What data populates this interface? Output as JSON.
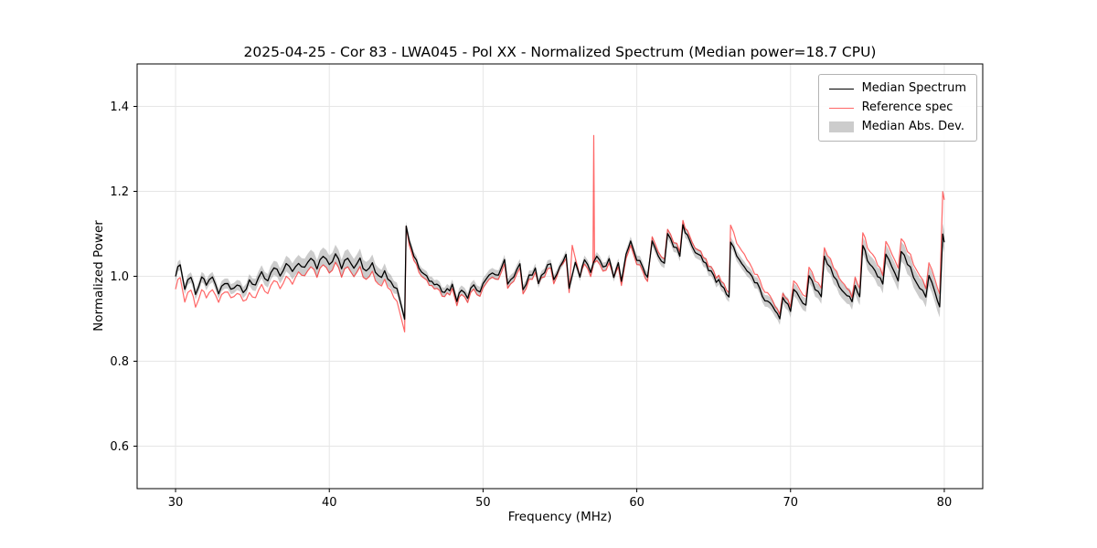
{
  "chart_data": {
    "type": "line",
    "title": "2025-04-25 - Cor 83 - LWA045 - Pol XX - Normalized Spectrum (Median power=18.7 CPU)",
    "xlabel": "Frequency (MHz)",
    "ylabel": "Normalized Power",
    "xlim": [
      27.5,
      82.5
    ],
    "ylim": [
      0.5,
      1.5
    ],
    "grid": true,
    "grid_color": "#e6e6e6",
    "legend_position": "upper right",
    "noise_amp": 0.008,
    "x_ticks": [
      {
        "v": 30,
        "label": "30"
      },
      {
        "v": 40,
        "label": "40"
      },
      {
        "v": 50,
        "label": "50"
      },
      {
        "v": 60,
        "label": "60"
      },
      {
        "v": 70,
        "label": "70"
      },
      {
        "v": 80,
        "label": "80"
      }
    ],
    "y_ticks": [
      {
        "v": 0.6,
        "label": "0.6"
      },
      {
        "v": 0.8,
        "label": "0.8"
      },
      {
        "v": 1.0,
        "label": "1.0"
      },
      {
        "v": 1.2,
        "label": "1.2"
      },
      {
        "v": 1.4,
        "label": "1.4"
      }
    ],
    "series": [
      {
        "name": "Median Spectrum",
        "color": "#000000",
        "width": 1.3,
        "points": [
          [
            30,
            1.0
          ],
          [
            30.3,
            1.03
          ],
          [
            30.6,
            0.97
          ],
          [
            31,
            1.0
          ],
          [
            31.3,
            0.96
          ],
          [
            31.7,
            1.0
          ],
          [
            32,
            0.98
          ],
          [
            32.4,
            1.0
          ],
          [
            32.8,
            0.96
          ],
          [
            33.2,
            0.98
          ],
          [
            33.6,
            0.97
          ],
          [
            34,
            0.98
          ],
          [
            34.4,
            0.96
          ],
          [
            34.8,
            0.99
          ],
          [
            35.2,
            0.98
          ],
          [
            35.6,
            1.01
          ],
          [
            36,
            0.99
          ],
          [
            36.4,
            1.02
          ],
          [
            36.8,
            1.0
          ],
          [
            37.2,
            1.03
          ],
          [
            37.6,
            1.01
          ],
          [
            38,
            1.03
          ],
          [
            38.4,
            1.02
          ],
          [
            38.8,
            1.04
          ],
          [
            39.2,
            1.02
          ],
          [
            39.6,
            1.05
          ],
          [
            40,
            1.03
          ],
          [
            40.4,
            1.05
          ],
          [
            40.8,
            1.02
          ],
          [
            41.2,
            1.04
          ],
          [
            41.6,
            1.02
          ],
          [
            42,
            1.04
          ],
          [
            42.4,
            1.01
          ],
          [
            42.8,
            1.03
          ],
          [
            43.2,
            1.0
          ],
          [
            43.6,
            1.01
          ],
          [
            44,
            0.99
          ],
          [
            44.4,
            0.97
          ],
          [
            44.7,
            0.93
          ],
          [
            44.9,
            0.9
          ],
          [
            45,
            1.12
          ],
          [
            45.2,
            1.08
          ],
          [
            45.5,
            1.05
          ],
          [
            46,
            1.01
          ],
          [
            46.5,
            0.99
          ],
          [
            47,
            0.98
          ],
          [
            47.5,
            0.96
          ],
          [
            48,
            0.98
          ],
          [
            48.3,
            0.94
          ],
          [
            48.6,
            0.97
          ],
          [
            49,
            0.95
          ],
          [
            49.4,
            0.98
          ],
          [
            49.8,
            0.96
          ],
          [
            50.2,
            0.99
          ],
          [
            50.6,
            1.01
          ],
          [
            51,
            1.0
          ],
          [
            51.4,
            1.04
          ],
          [
            51.6,
            0.98
          ],
          [
            52,
            1.0
          ],
          [
            52.4,
            1.03
          ],
          [
            52.6,
            0.97
          ],
          [
            53,
            1.0
          ],
          [
            53.4,
            1.02
          ],
          [
            53.6,
            0.98
          ],
          [
            54,
            1.01
          ],
          [
            54.4,
            1.03
          ],
          [
            54.6,
            0.99
          ],
          [
            55,
            1.02
          ],
          [
            55.4,
            1.05
          ],
          [
            55.6,
            0.97
          ],
          [
            56,
            1.03
          ],
          [
            56.3,
            1.0
          ],
          [
            56.6,
            1.04
          ],
          [
            57,
            1.01
          ],
          [
            57.4,
            1.05
          ],
          [
            57.8,
            1.02
          ],
          [
            58.2,
            1.04
          ],
          [
            58.5,
            1.0
          ],
          [
            58.8,
            1.03
          ],
          [
            59,
            0.99
          ],
          [
            59.3,
            1.05
          ],
          [
            59.6,
            1.08
          ],
          [
            60,
            1.04
          ],
          [
            60.4,
            1.02
          ],
          [
            60.7,
            1.0
          ],
          [
            61,
            1.08
          ],
          [
            61.4,
            1.05
          ],
          [
            61.8,
            1.03
          ],
          [
            62,
            1.1
          ],
          [
            62.4,
            1.07
          ],
          [
            62.8,
            1.05
          ],
          [
            63,
            1.12
          ],
          [
            63.3,
            1.1
          ],
          [
            63.6,
            1.07
          ],
          [
            64,
            1.05
          ],
          [
            64.5,
            1.03
          ],
          [
            65,
            1.0
          ],
          [
            65.5,
            0.98
          ],
          [
            66,
            0.95
          ],
          [
            66.1,
            1.08
          ],
          [
            66.5,
            1.05
          ],
          [
            67,
            1.02
          ],
          [
            67.5,
            1.0
          ],
          [
            68,
            0.97
          ],
          [
            68.5,
            0.94
          ],
          [
            69,
            0.92
          ],
          [
            69.3,
            0.9
          ],
          [
            69.5,
            0.95
          ],
          [
            70,
            0.92
          ],
          [
            70.2,
            0.97
          ],
          [
            70.6,
            0.95
          ],
          [
            71,
            0.93
          ],
          [
            71.2,
            1.0
          ],
          [
            71.6,
            0.97
          ],
          [
            72,
            0.95
          ],
          [
            72.2,
            1.05
          ],
          [
            72.6,
            1.02
          ],
          [
            73,
            0.99
          ],
          [
            73.5,
            0.96
          ],
          [
            74,
            0.94
          ],
          [
            74.2,
            0.98
          ],
          [
            74.5,
            0.95
          ],
          [
            74.7,
            1.07
          ],
          [
            75,
            1.04
          ],
          [
            75.5,
            1.01
          ],
          [
            76,
            0.98
          ],
          [
            76.2,
            1.05
          ],
          [
            76.6,
            1.02
          ],
          [
            77,
            0.99
          ],
          [
            77.2,
            1.06
          ],
          [
            77.6,
            1.03
          ],
          [
            78,
            1.0
          ],
          [
            78.4,
            0.97
          ],
          [
            78.8,
            0.95
          ],
          [
            79,
            1.0
          ],
          [
            79.4,
            0.96
          ],
          [
            79.7,
            0.93
          ],
          [
            79.9,
            1.1
          ],
          [
            80,
            1.08
          ]
        ]
      },
      {
        "name": "Reference spec",
        "color": "rgba(255,0,0,0.6)",
        "width": 1.2,
        "points": [
          [
            30,
            0.97
          ],
          [
            30.3,
            1.0
          ],
          [
            30.6,
            0.94
          ],
          [
            31,
            0.97
          ],
          [
            31.3,
            0.93
          ],
          [
            31.7,
            0.97
          ],
          [
            32,
            0.95
          ],
          [
            32.4,
            0.97
          ],
          [
            32.8,
            0.94
          ],
          [
            33.2,
            0.96
          ],
          [
            33.6,
            0.95
          ],
          [
            34,
            0.96
          ],
          [
            34.4,
            0.94
          ],
          [
            34.8,
            0.96
          ],
          [
            35.2,
            0.95
          ],
          [
            35.6,
            0.98
          ],
          [
            36,
            0.96
          ],
          [
            36.4,
            0.99
          ],
          [
            36.8,
            0.97
          ],
          [
            37.2,
            1.0
          ],
          [
            37.6,
            0.98
          ],
          [
            38,
            1.01
          ],
          [
            38.4,
            1.0
          ],
          [
            38.8,
            1.02
          ],
          [
            39.2,
            1.0
          ],
          [
            39.6,
            1.03
          ],
          [
            40,
            1.01
          ],
          [
            40.4,
            1.03
          ],
          [
            40.8,
            1.0
          ],
          [
            41.2,
            1.02
          ],
          [
            41.6,
            1.0
          ],
          [
            42,
            1.02
          ],
          [
            42.4,
            0.99
          ],
          [
            42.8,
            1.01
          ],
          [
            43.2,
            0.98
          ],
          [
            43.6,
            0.99
          ],
          [
            44,
            0.97
          ],
          [
            44.4,
            0.94
          ],
          [
            44.7,
            0.9
          ],
          [
            44.9,
            0.87
          ],
          [
            45,
            1.12
          ],
          [
            45.2,
            1.07
          ],
          [
            45.5,
            1.04
          ],
          [
            46,
            1.0
          ],
          [
            46.5,
            0.98
          ],
          [
            47,
            0.97
          ],
          [
            47.5,
            0.95
          ],
          [
            48,
            0.97
          ],
          [
            48.3,
            0.93
          ],
          [
            48.6,
            0.96
          ],
          [
            49,
            0.94
          ],
          [
            49.4,
            0.97
          ],
          [
            49.8,
            0.95
          ],
          [
            50.2,
            0.98
          ],
          [
            50.6,
            1.0
          ],
          [
            51,
            0.99
          ],
          [
            51.4,
            1.03
          ],
          [
            51.6,
            0.97
          ],
          [
            52,
            0.99
          ],
          [
            52.4,
            1.02
          ],
          [
            52.6,
            0.96
          ],
          [
            53,
            0.99
          ],
          [
            53.4,
            1.01
          ],
          [
            53.6,
            0.98
          ],
          [
            54,
            1.0
          ],
          [
            54.4,
            1.02
          ],
          [
            54.6,
            0.98
          ],
          [
            55,
            1.02
          ],
          [
            55.4,
            1.04
          ],
          [
            55.6,
            0.96
          ],
          [
            55.8,
            1.07
          ],
          [
            56,
            1.04
          ],
          [
            56.3,
            1.0
          ],
          [
            56.6,
            1.03
          ],
          [
            57,
            1.0
          ],
          [
            57.15,
            1.02
          ],
          [
            57.2,
            1.33
          ],
          [
            57.25,
            1.03
          ],
          [
            57.4,
            1.04
          ],
          [
            57.8,
            1.01
          ],
          [
            58.2,
            1.03
          ],
          [
            58.5,
            1.0
          ],
          [
            58.8,
            1.02
          ],
          [
            59,
            0.98
          ],
          [
            59.3,
            1.04
          ],
          [
            59.6,
            1.07
          ],
          [
            60,
            1.03
          ],
          [
            60.4,
            1.01
          ],
          [
            60.7,
            0.99
          ],
          [
            61,
            1.09
          ],
          [
            61.4,
            1.06
          ],
          [
            61.8,
            1.04
          ],
          [
            62,
            1.11
          ],
          [
            62.4,
            1.08
          ],
          [
            62.8,
            1.06
          ],
          [
            63,
            1.13
          ],
          [
            63.3,
            1.11
          ],
          [
            63.6,
            1.08
          ],
          [
            64,
            1.06
          ],
          [
            64.5,
            1.04
          ],
          [
            65,
            1.01
          ],
          [
            65.5,
            0.99
          ],
          [
            66,
            0.96
          ],
          [
            66.1,
            1.12
          ],
          [
            66.5,
            1.08
          ],
          [
            67,
            1.05
          ],
          [
            67.5,
            1.02
          ],
          [
            68,
            0.99
          ],
          [
            68.5,
            0.96
          ],
          [
            69,
            0.93
          ],
          [
            69.3,
            0.91
          ],
          [
            69.5,
            0.96
          ],
          [
            70,
            0.93
          ],
          [
            70.2,
            0.99
          ],
          [
            70.6,
            0.97
          ],
          [
            71,
            0.95
          ],
          [
            71.2,
            1.02
          ],
          [
            71.6,
            0.99
          ],
          [
            72,
            0.97
          ],
          [
            72.2,
            1.07
          ],
          [
            72.6,
            1.04
          ],
          [
            73,
            1.01
          ],
          [
            73.5,
            0.98
          ],
          [
            74,
            0.95
          ],
          [
            74.2,
            1.0
          ],
          [
            74.5,
            0.97
          ],
          [
            74.7,
            1.1
          ],
          [
            75,
            1.07
          ],
          [
            75.5,
            1.04
          ],
          [
            76,
            1.0
          ],
          [
            76.2,
            1.08
          ],
          [
            76.6,
            1.05
          ],
          [
            77,
            1.02
          ],
          [
            77.2,
            1.09
          ],
          [
            77.6,
            1.06
          ],
          [
            78,
            1.03
          ],
          [
            78.4,
            1.0
          ],
          [
            78.8,
            0.97
          ],
          [
            79,
            1.03
          ],
          [
            79.4,
            0.99
          ],
          [
            79.7,
            0.96
          ],
          [
            79.9,
            1.2
          ],
          [
            80,
            1.18
          ]
        ]
      }
    ],
    "band": {
      "name": "Median Abs. Dev.",
      "color": "rgba(128,128,128,0.4)",
      "base_series": 0,
      "halfwidth": [
        [
          30,
          0.012
        ],
        [
          34,
          0.012
        ],
        [
          38,
          0.02
        ],
        [
          42,
          0.022
        ],
        [
          44,
          0.016
        ],
        [
          45,
          0.01
        ],
        [
          50,
          0.012
        ],
        [
          55,
          0.01
        ],
        [
          58,
          0.01
        ],
        [
          62,
          0.012
        ],
        [
          66,
          0.012
        ],
        [
          70,
          0.015
        ],
        [
          73,
          0.018
        ],
        [
          76,
          0.022
        ],
        [
          80,
          0.025
        ]
      ]
    }
  }
}
